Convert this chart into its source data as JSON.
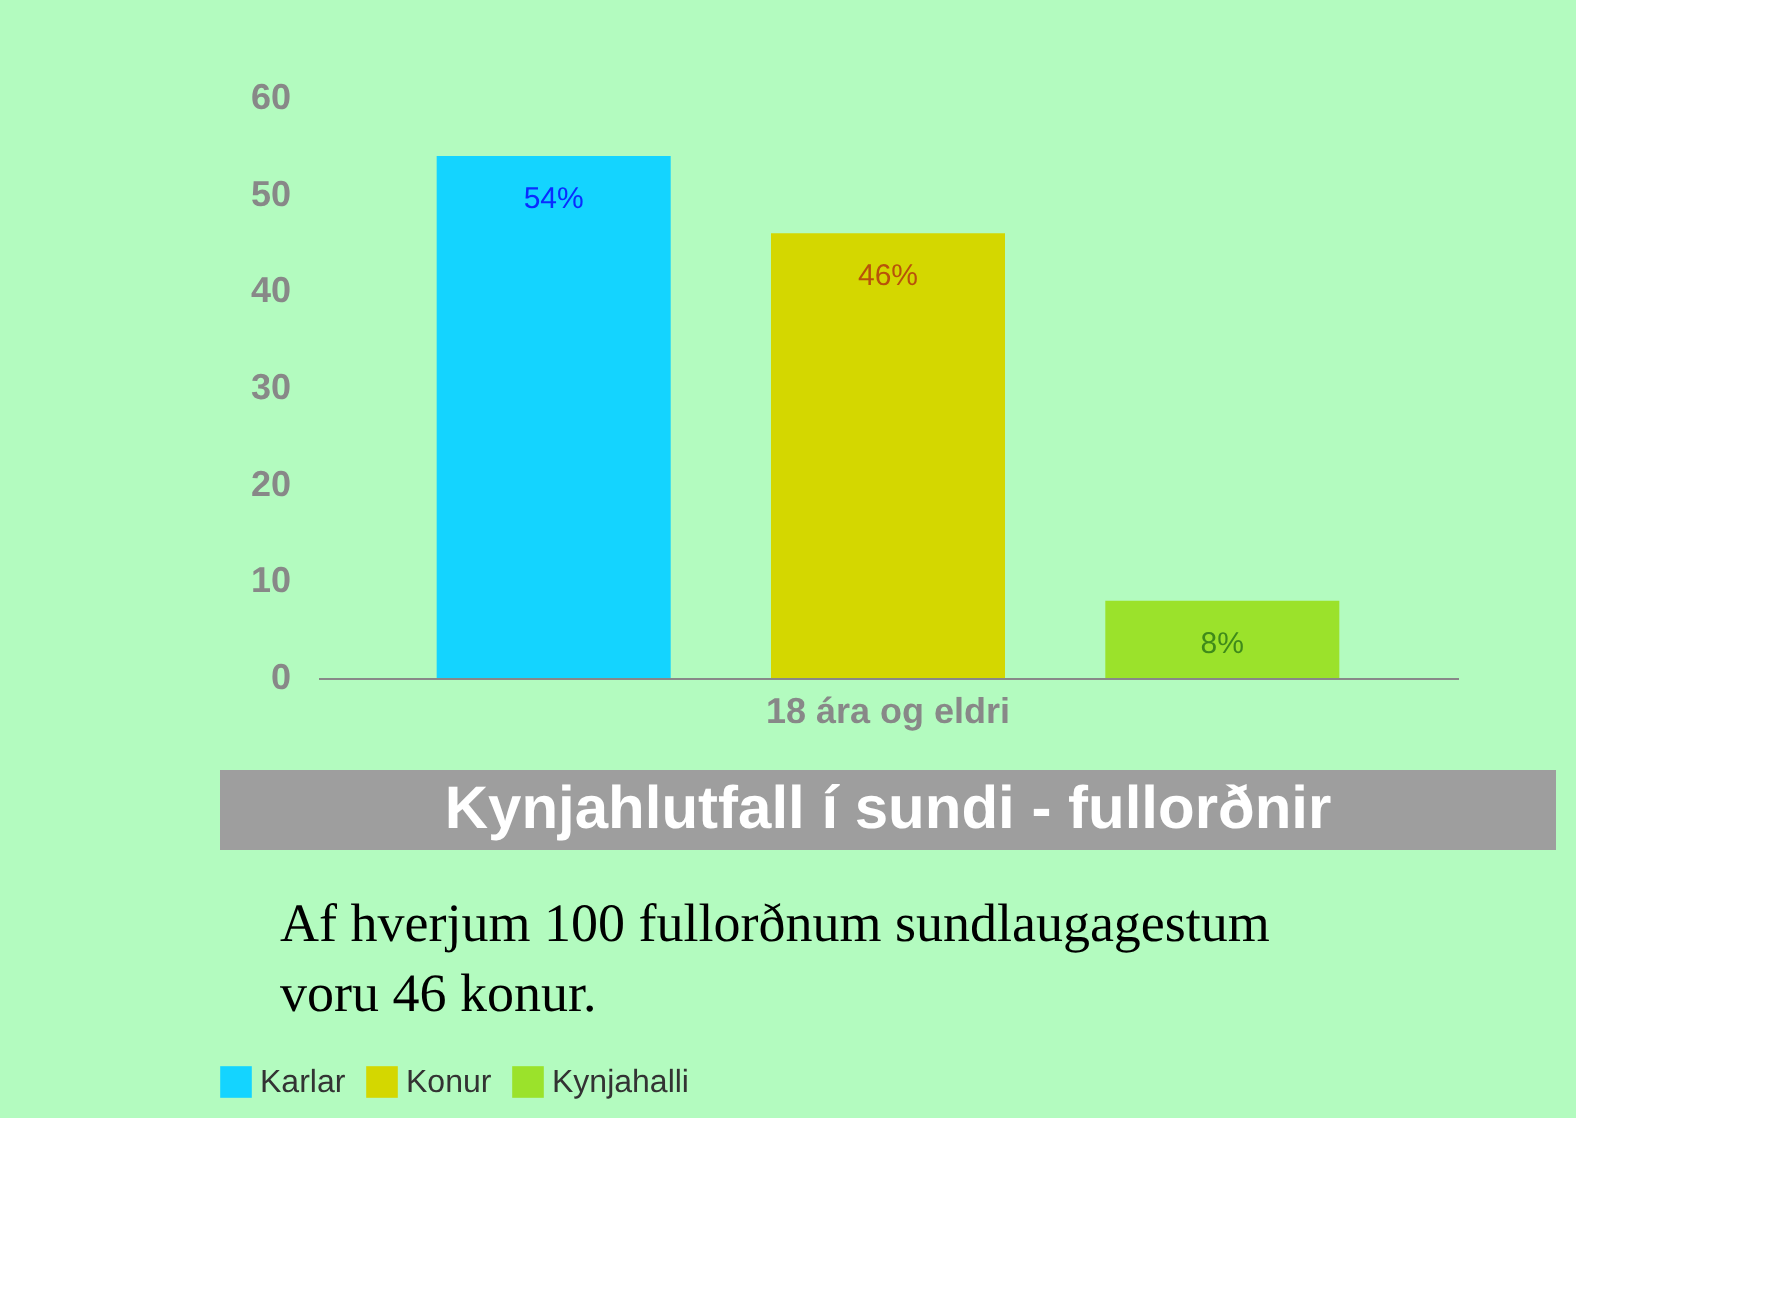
{
  "chart_data": {
    "type": "bar",
    "title": "Kynjahlutfall í sundi - fullorðnir",
    "categories": [
      "18 ára og eldri"
    ],
    "series": [
      {
        "name": "Karlar",
        "color": "#14d4ff",
        "values": [
          54
        ],
        "value_labels": [
          "54%"
        ]
      },
      {
        "name": "Konur",
        "color": "#d4d700",
        "values": [
          46
        ],
        "value_labels": [
          "46%"
        ]
      },
      {
        "name": "Kynjahalli",
        "color": "#9be22b",
        "values": [
          8
        ],
        "value_labels": [
          "8%"
        ]
      }
    ],
    "ylim": [
      0,
      60
    ],
    "yticks": [
      0,
      10,
      20,
      30,
      40,
      50,
      60
    ],
    "grid": false,
    "legend": "bottom",
    "annotations": [
      "Af hverjum 100 fullorðnum sundlaugagestum",
      "voru 46 konur."
    ]
  }
}
